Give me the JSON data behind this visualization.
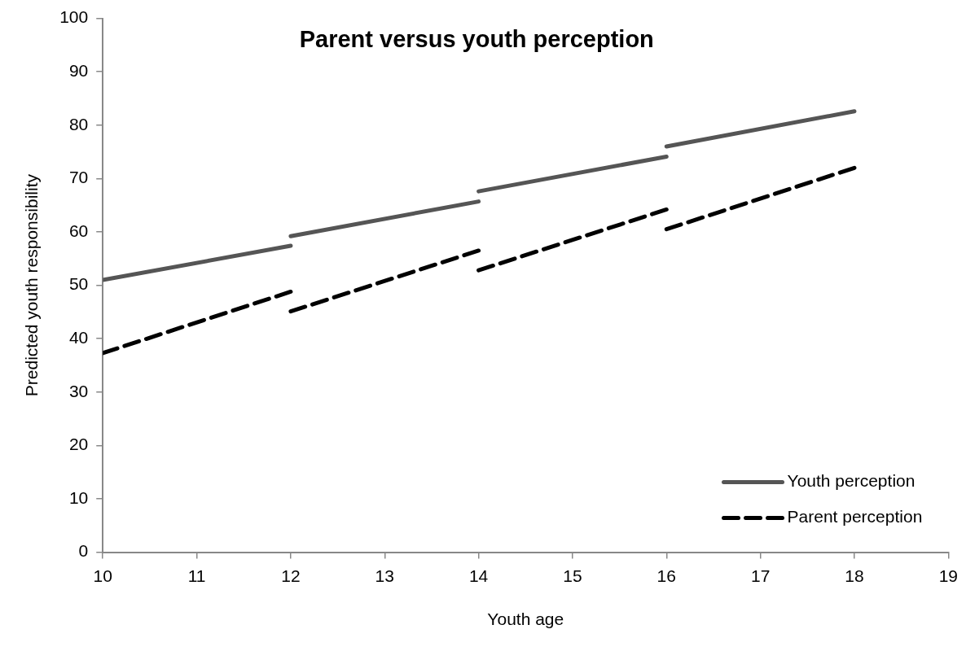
{
  "chart_data": {
    "type": "line",
    "title": "Parent versus youth perception",
    "xlabel": "Youth age",
    "ylabel": "Predicted youth responsibility",
    "series": [
      {
        "name": "Youth perception",
        "color": "#555555",
        "line_style": "solid",
        "x": [
          10,
          12
        ],
        "values": [
          51,
          57.4
        ]
      },
      {
        "color": "#555555",
        "line_style": "solid",
        "x": [
          12,
          14
        ],
        "values": [
          59.2,
          65.7
        ]
      },
      {
        "color": "#555555",
        "line_style": "solid",
        "x": [
          14,
          16
        ],
        "values": [
          67.6,
          74.1
        ]
      },
      {
        "color": "#555555",
        "line_style": "solid",
        "x": [
          16,
          18
        ],
        "values": [
          76,
          82.6
        ]
      },
      {
        "name": "Parent perception",
        "color": "#000000",
        "line_style": "dashed",
        "x": [
          10,
          12
        ],
        "values": [
          37.3,
          48.8
        ]
      },
      {
        "color": "#000000",
        "line_style": "dashed",
        "x": [
          12,
          14
        ],
        "values": [
          45.1,
          56.5
        ]
      },
      {
        "color": "#000000",
        "line_style": "dashed",
        "x": [
          14,
          16
        ],
        "values": [
          52.8,
          64.2
        ]
      },
      {
        "color": "#000000",
        "line_style": "dashed",
        "x": [
          16,
          18
        ],
        "values": [
          60.5,
          72
        ]
      }
    ],
    "xlim": [
      10,
      19
    ],
    "xticks": [
      10,
      11,
      12,
      13,
      14,
      15,
      16,
      17,
      18,
      19
    ],
    "ylim": [
      0,
      100
    ],
    "yticks": [
      0,
      10,
      20,
      30,
      40,
      50,
      60,
      70,
      80,
      90,
      100
    ],
    "grid": false,
    "legend": "bottom right",
    "marker": "none"
  }
}
